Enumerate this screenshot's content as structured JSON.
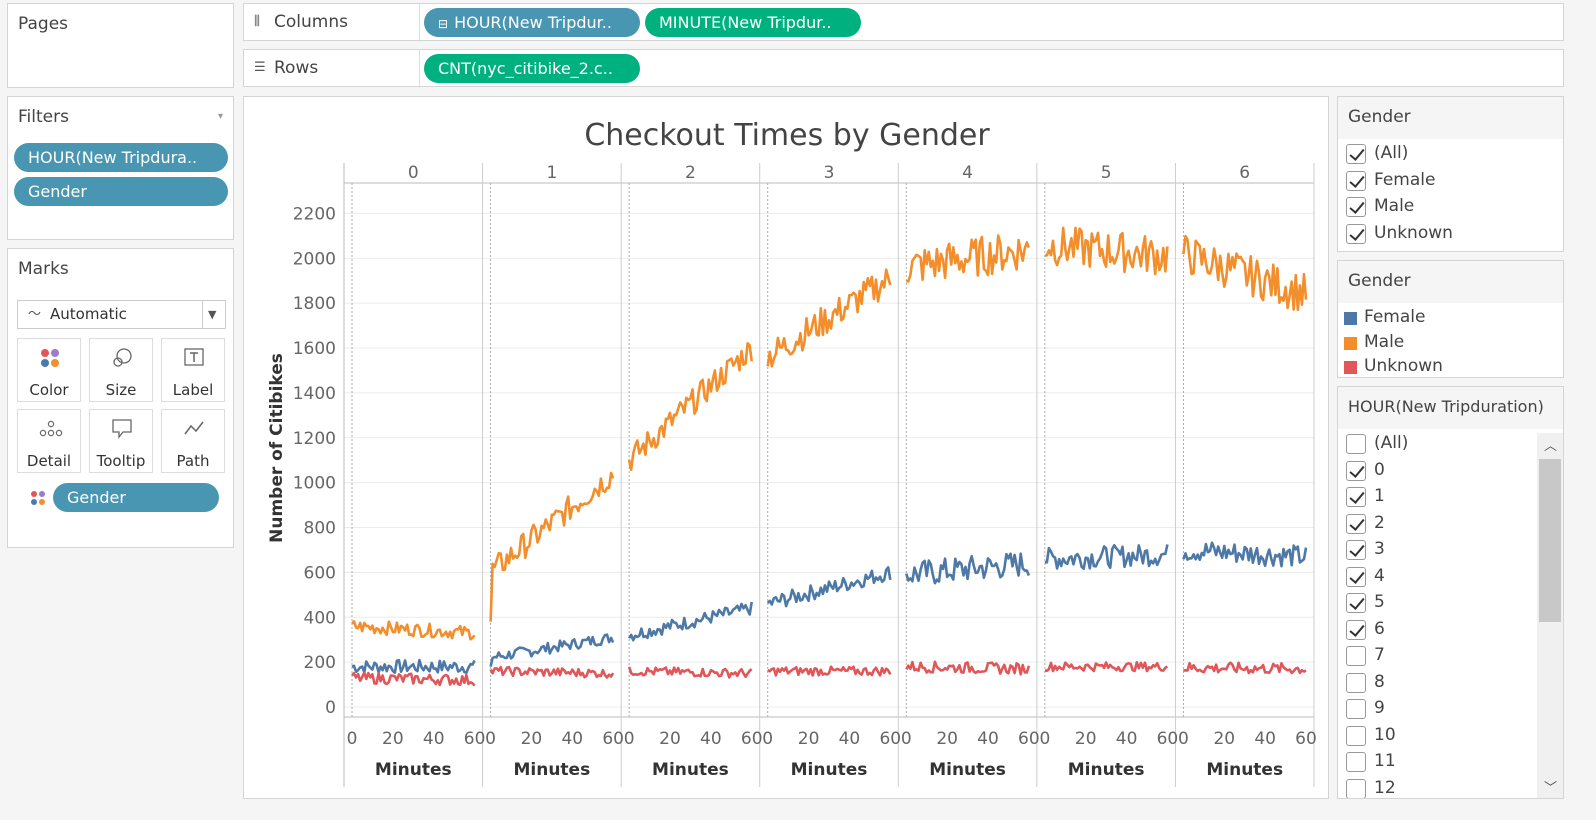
{
  "pages": {
    "title": "Pages"
  },
  "shelves": {
    "columns_label": "Columns",
    "rows_label": "Rows",
    "column_pills": [
      "HOUR(New Tripdur..",
      "MINUTE(New Tripdur.."
    ],
    "row_pills": [
      "CNT(nyc_citibike_2.c.."
    ]
  },
  "filters": {
    "title": "Filters",
    "pills": [
      "HOUR(New Tripdura..",
      "Gender"
    ]
  },
  "marks": {
    "title": "Marks",
    "type_dropdown": "Automatic",
    "buttons": [
      "Color",
      "Size",
      "Label",
      "Detail",
      "Tooltip",
      "Path"
    ],
    "pill": "Gender"
  },
  "gender_filter": {
    "title": "Gender",
    "items": [
      {
        "label": "(All)",
        "checked": true
      },
      {
        "label": "Female",
        "checked": true
      },
      {
        "label": "Male",
        "checked": true
      },
      {
        "label": "Unknown",
        "checked": true
      }
    ]
  },
  "gender_legend": {
    "title": "Gender",
    "items": [
      {
        "label": "Female",
        "color": "#4e79a7"
      },
      {
        "label": "Male",
        "color": "#f28e2b"
      },
      {
        "label": "Unknown",
        "color": "#e15759"
      }
    ]
  },
  "hour_filter": {
    "title": "HOUR(New Tripduration)",
    "items": [
      {
        "label": "(All)",
        "checked": false
      },
      {
        "label": "0",
        "checked": true
      },
      {
        "label": "1",
        "checked": true
      },
      {
        "label": "2",
        "checked": true
      },
      {
        "label": "3",
        "checked": true
      },
      {
        "label": "4",
        "checked": true
      },
      {
        "label": "5",
        "checked": true
      },
      {
        "label": "6",
        "checked": true
      },
      {
        "label": "7",
        "checked": false
      },
      {
        "label": "8",
        "checked": false
      },
      {
        "label": "9",
        "checked": false
      },
      {
        "label": "10",
        "checked": false
      },
      {
        "label": "11",
        "checked": false
      },
      {
        "label": "12",
        "checked": false
      }
    ]
  },
  "chart_data": {
    "type": "line",
    "title": "Checkout Times by Gender",
    "ylabel": "Number of Citibikes",
    "xlabel": "Minutes",
    "ylim": [
      0,
      2300
    ],
    "yticks": [
      0,
      200,
      400,
      600,
      800,
      1000,
      1200,
      1400,
      1600,
      1800,
      2000,
      2200
    ],
    "xticks": [
      0,
      20,
      40,
      60
    ],
    "xlim": [
      0,
      60
    ],
    "panels": [
      "0",
      "1",
      "2",
      "3",
      "4",
      "5",
      "6"
    ],
    "grid": true,
    "series": [
      {
        "name": "Female",
        "color": "#4e79a7",
        "panel_start": [
          180,
          220,
          320,
          460,
          590,
          660,
          700
        ],
        "panel_end": [
          180,
          310,
          440,
          600,
          640,
          680,
          670
        ],
        "noise": [
          30,
          25,
          30,
          35,
          60,
          50,
          50
        ]
      },
      {
        "name": "Male",
        "color": "#f28e2b",
        "panel_start": [
          360,
          600,
          1100,
          1560,
          1960,
          2060,
          2020
        ],
        "panel_end": [
          330,
          1040,
          1600,
          1910,
          2040,
          2010,
          1840
        ],
        "noise": [
          30,
          60,
          60,
          70,
          90,
          90,
          90
        ]
      },
      {
        "name": "Unknown",
        "color": "#e15759",
        "panel_start": [
          130,
          160,
          160,
          160,
          180,
          180,
          175
        ],
        "panel_end": [
          120,
          150,
          150,
          160,
          170,
          180,
          170
        ],
        "noise": [
          25,
          20,
          20,
          20,
          25,
          20,
          25
        ]
      }
    ]
  }
}
